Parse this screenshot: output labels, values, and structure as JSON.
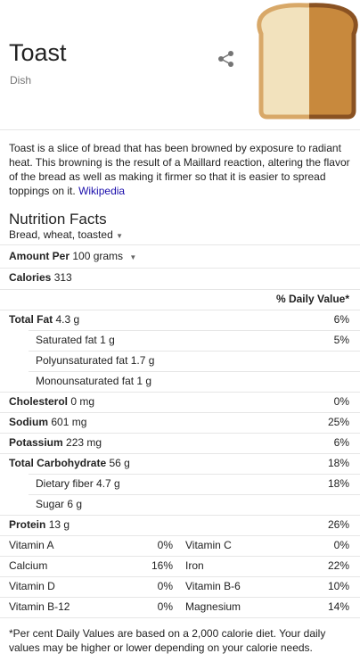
{
  "header": {
    "title": "Toast",
    "subtitle": "Dish"
  },
  "description": {
    "text": "Toast is a slice of bread that has been browned by exposure to radiant heat. This browning is the result of a Maillard reaction, altering the flavor of the bread as well as making it firmer so that it is easier to spread toppings on it.",
    "source": "Wikipedia"
  },
  "nutrition": {
    "title": "Nutrition Facts",
    "food": "Bread, wheat, toasted",
    "amount_label": "Amount Per",
    "amount": "100 grams",
    "calories_label": "Calories",
    "calories": "313",
    "dv_header": "% Daily Value*",
    "rows": [
      {
        "label": "Total Fat",
        "amount": "4.3 g",
        "dv": "6%",
        "indent": false
      },
      {
        "label": "Saturated fat",
        "amount": "1 g",
        "dv": "5%",
        "indent": true
      },
      {
        "label": "Polyunsaturated fat",
        "amount": "1.7 g",
        "indent": true
      },
      {
        "label": "Monounsaturated fat",
        "amount": "1 g",
        "indent": true
      },
      {
        "label": "Cholesterol",
        "amount": "0 mg",
        "dv": "0%",
        "indent": false
      },
      {
        "label": "Sodium",
        "amount": "601 mg",
        "dv": "25%",
        "indent": false
      },
      {
        "label": "Potassium",
        "amount": "223 mg",
        "dv": "6%",
        "indent": false
      },
      {
        "label": "Total Carbohydrate",
        "amount": "56 g",
        "dv": "18%",
        "indent": false
      },
      {
        "label": "Dietary fiber",
        "amount": "4.7 g",
        "dv": "18%",
        "indent": true
      },
      {
        "label": "Sugar",
        "amount": "6 g",
        "indent": true
      },
      {
        "label": "Protein",
        "amount": "13 g",
        "dv": "26%",
        "indent": false
      }
    ],
    "vitamins": [
      [
        "Vitamin A",
        "0%",
        "Vitamin C",
        "0%"
      ],
      [
        "Calcium",
        "16%",
        "Iron",
        "22%"
      ],
      [
        "Vitamin D",
        "0%",
        "Vitamin B-6",
        "10%"
      ],
      [
        "Vitamin B-12",
        "0%",
        "Magnesium",
        "14%"
      ]
    ],
    "footnote": "*Per cent Daily Values are based on a 2,000 calorie diet. Your daily values may be higher or lower depending on your calorie needs."
  }
}
